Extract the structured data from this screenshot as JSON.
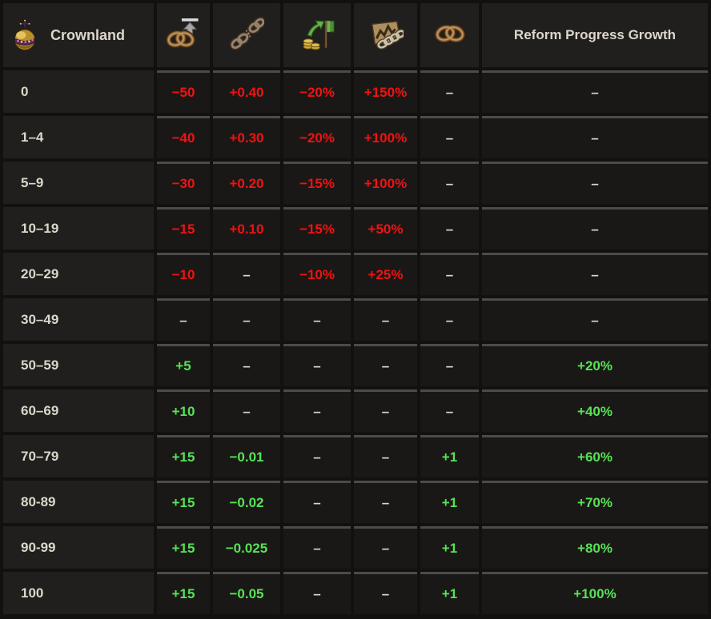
{
  "colors": {
    "negative_red": "#f01212",
    "positive_green": "#57e257",
    "neutral_dash_text": "#d6d6d6",
    "header_text": "#dcd7cb",
    "cell_background": "#1a1816",
    "header_background": "#211f1d",
    "page_background": "#131110",
    "cell_border": "#4c4b49"
  },
  "table": {
    "columns": [
      {
        "key": "crownland",
        "label": "Crownland",
        "icon": "crownland-orb-icon"
      },
      {
        "key": "loyalty_equilibrium",
        "label": "",
        "icon": "knot-up-arrow-icon"
      },
      {
        "key": "monthly_autonomy",
        "label": "",
        "icon": "broken-chain-icon"
      },
      {
        "key": "income_flag",
        "label": "",
        "icon": "coins-flag-icon"
      },
      {
        "key": "rebel_support",
        "label": "",
        "icon": "torn-map-chain-icon"
      },
      {
        "key": "loyalty",
        "label": "",
        "icon": "knot-icon"
      },
      {
        "key": "reform_progress",
        "label": "Reform Progress Growth",
        "icon": ""
      }
    ],
    "rows": [
      {
        "label": "0",
        "cells": [
          {
            "text": "−50",
            "tone": "red"
          },
          {
            "text": "+0.40",
            "tone": "red"
          },
          {
            "text": "−20%",
            "tone": "red"
          },
          {
            "text": "+150%",
            "tone": "red"
          },
          {
            "text": "–",
            "tone": "dash"
          },
          {
            "text": "–",
            "tone": "dash"
          }
        ]
      },
      {
        "label": "1–4",
        "cells": [
          {
            "text": "−40",
            "tone": "red"
          },
          {
            "text": "+0.30",
            "tone": "red"
          },
          {
            "text": "−20%",
            "tone": "red"
          },
          {
            "text": "+100%",
            "tone": "red"
          },
          {
            "text": "–",
            "tone": "dash"
          },
          {
            "text": "–",
            "tone": "dash"
          }
        ]
      },
      {
        "label": "5–9",
        "cells": [
          {
            "text": "−30",
            "tone": "red"
          },
          {
            "text": "+0.20",
            "tone": "red"
          },
          {
            "text": "−15%",
            "tone": "red"
          },
          {
            "text": "+100%",
            "tone": "red"
          },
          {
            "text": "–",
            "tone": "dash"
          },
          {
            "text": "–",
            "tone": "dash"
          }
        ]
      },
      {
        "label": "10–19",
        "cells": [
          {
            "text": "−15",
            "tone": "red"
          },
          {
            "text": "+0.10",
            "tone": "red"
          },
          {
            "text": "−15%",
            "tone": "red"
          },
          {
            "text": "+50%",
            "tone": "red"
          },
          {
            "text": "–",
            "tone": "dash"
          },
          {
            "text": "–",
            "tone": "dash"
          }
        ]
      },
      {
        "label": "20–29",
        "cells": [
          {
            "text": "−10",
            "tone": "red"
          },
          {
            "text": "–",
            "tone": "dash"
          },
          {
            "text": "−10%",
            "tone": "red"
          },
          {
            "text": "+25%",
            "tone": "red"
          },
          {
            "text": "–",
            "tone": "dash"
          },
          {
            "text": "–",
            "tone": "dash"
          }
        ]
      },
      {
        "label": "30–49",
        "cells": [
          {
            "text": "–",
            "tone": "dash"
          },
          {
            "text": "–",
            "tone": "dash"
          },
          {
            "text": "–",
            "tone": "dash"
          },
          {
            "text": "–",
            "tone": "dash"
          },
          {
            "text": "–",
            "tone": "dash"
          },
          {
            "text": "–",
            "tone": "dash"
          }
        ]
      },
      {
        "label": "50–59",
        "cells": [
          {
            "text": "+5",
            "tone": "green"
          },
          {
            "text": "–",
            "tone": "dash"
          },
          {
            "text": "–",
            "tone": "dash"
          },
          {
            "text": "–",
            "tone": "dash"
          },
          {
            "text": "–",
            "tone": "dash"
          },
          {
            "text": "+20%",
            "tone": "green"
          }
        ]
      },
      {
        "label": "60–69",
        "cells": [
          {
            "text": "+10",
            "tone": "green"
          },
          {
            "text": "–",
            "tone": "dash"
          },
          {
            "text": "–",
            "tone": "dash"
          },
          {
            "text": "–",
            "tone": "dash"
          },
          {
            "text": "–",
            "tone": "dash"
          },
          {
            "text": "+40%",
            "tone": "green"
          }
        ]
      },
      {
        "label": "70–79",
        "cells": [
          {
            "text": "+15",
            "tone": "green"
          },
          {
            "text": "−0.01",
            "tone": "green"
          },
          {
            "text": "–",
            "tone": "dash"
          },
          {
            "text": "–",
            "tone": "dash"
          },
          {
            "text": "+1",
            "tone": "green"
          },
          {
            "text": "+60%",
            "tone": "green"
          }
        ]
      },
      {
        "label": "80-89",
        "cells": [
          {
            "text": "+15",
            "tone": "green"
          },
          {
            "text": "−0.02",
            "tone": "green"
          },
          {
            "text": "–",
            "tone": "dash"
          },
          {
            "text": "–",
            "tone": "dash"
          },
          {
            "text": "+1",
            "tone": "green"
          },
          {
            "text": "+70%",
            "tone": "green"
          }
        ]
      },
      {
        "label": "90-99",
        "cells": [
          {
            "text": "+15",
            "tone": "green"
          },
          {
            "text": "−0.025",
            "tone": "green"
          },
          {
            "text": "–",
            "tone": "dash"
          },
          {
            "text": "–",
            "tone": "dash"
          },
          {
            "text": "+1",
            "tone": "green"
          },
          {
            "text": "+80%",
            "tone": "green"
          }
        ]
      },
      {
        "label": "100",
        "cells": [
          {
            "text": "+15",
            "tone": "green"
          },
          {
            "text": "−0.05",
            "tone": "green"
          },
          {
            "text": "–",
            "tone": "dash"
          },
          {
            "text": "–",
            "tone": "dash"
          },
          {
            "text": "+1",
            "tone": "green"
          },
          {
            "text": "+100%",
            "tone": "green"
          }
        ]
      }
    ]
  }
}
